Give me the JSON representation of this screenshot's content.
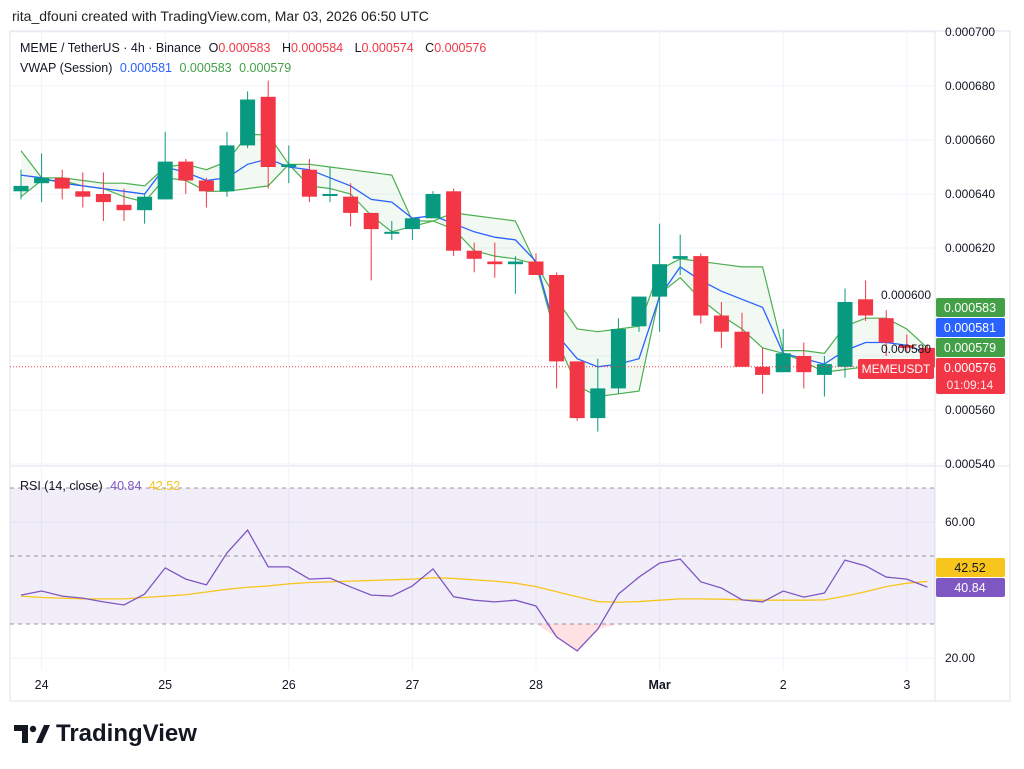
{
  "header": {
    "credit": "rita_dfouni created with TradingView.com, Mar 03, 2026 06:50 UTC"
  },
  "legend": {
    "symbol": "MEME / TetherUS · 4h · Binance",
    "o_label": "O",
    "o": "0.000583",
    "h_label": "H",
    "h": "0.000584",
    "l_label": "L",
    "l": "0.000574",
    "c_label": "C",
    "c": "0.000576",
    "vwap_title": "VWAP (Session)",
    "vwap": "0.000581",
    "vwap_upper": "0.000583",
    "vwap_lower": "0.000579",
    "rsi_title": "RSI (14, close)",
    "rsi": "40.84",
    "rsi_ma": "42.52"
  },
  "price_labels": {
    "upper": "0.000583",
    "vwap": "0.000581",
    "lower": "0.000579",
    "last": "0.000576",
    "countdown": "01:09:14",
    "ticker": "MEMEUSDT"
  },
  "rsi_labels": {
    "ma": "42.52",
    "rsi": "40.84"
  },
  "colors": {
    "up": "#089981",
    "down": "#f23645",
    "vwap": "#2962ff",
    "band": "#4caf50",
    "rsi": "#7e57c2",
    "rsi_ma": "#f7c51b"
  },
  "logo": {
    "text": "TradingView"
  },
  "chart_data": [
    {
      "type": "candlestick",
      "title": "MEME / TetherUS · 4h · Binance",
      "ylim": [
        0.00054,
        0.0007
      ],
      "y_ticks": [
        "0.000700",
        "0.000680",
        "0.000660",
        "0.000640",
        "0.000620",
        "0.000600",
        "0.000580",
        "0.000560",
        "0.000540"
      ],
      "x_ticks": [
        "24",
        "25",
        "26",
        "27",
        "28",
        "Mar",
        "2",
        "3"
      ],
      "x_tick_index": [
        1,
        7,
        13,
        19,
        25,
        31,
        37,
        43
      ],
      "grid": true,
      "ohlc": [
        [
          0.000641,
          0.000649,
          0.000638,
          0.000643
        ],
        [
          0.000644,
          0.000655,
          0.000637,
          0.000646
        ],
        [
          0.000646,
          0.000649,
          0.000638,
          0.000642
        ],
        [
          0.000641,
          0.000648,
          0.000635,
          0.000639
        ],
        [
          0.00064,
          0.000648,
          0.00063,
          0.000637
        ],
        [
          0.000636,
          0.000642,
          0.00063,
          0.000634
        ],
        [
          0.000634,
          0.00064,
          0.000629,
          0.000639
        ],
        [
          0.000638,
          0.000663,
          0.000638,
          0.000652
        ],
        [
          0.000652,
          0.000653,
          0.00064,
          0.000645
        ],
        [
          0.000645,
          0.000646,
          0.000635,
          0.000641
        ],
        [
          0.000641,
          0.000663,
          0.000639,
          0.000658
        ],
        [
          0.000658,
          0.000678,
          0.000657,
          0.000675
        ],
        [
          0.000676,
          0.000682,
          0.000642,
          0.00065
        ],
        [
          0.00065,
          0.000658,
          0.000644,
          0.000651
        ],
        [
          0.000649,
          0.000653,
          0.000637,
          0.000639
        ],
        [
          0.00064,
          0.00065,
          0.000637,
          0.00064
        ],
        [
          0.000639,
          0.000644,
          0.000628,
          0.000633
        ],
        [
          0.000633,
          0.000633,
          0.000608,
          0.000627
        ],
        [
          0.000626,
          0.00063,
          0.000623,
          0.000626
        ],
        [
          0.000627,
          0.000631,
          0.000623,
          0.000631
        ],
        [
          0.000631,
          0.000641,
          0.000631,
          0.00064
        ],
        [
          0.000641,
          0.000642,
          0.000617,
          0.000619
        ],
        [
          0.000619,
          0.000622,
          0.000611,
          0.000616
        ],
        [
          0.000615,
          0.000622,
          0.000609,
          0.000614
        ],
        [
          0.000614,
          0.000617,
          0.000603,
          0.000615
        ],
        [
          0.000615,
          0.000618,
          0.00061,
          0.00061
        ],
        [
          0.00061,
          0.000611,
          0.000568,
          0.000578
        ],
        [
          0.000578,
          0.000578,
          0.000556,
          0.000557
        ],
        [
          0.000557,
          0.000579,
          0.000552,
          0.000568
        ],
        [
          0.000568,
          0.000594,
          0.000566,
          0.00059
        ],
        [
          0.000591,
          0.000602,
          0.000589,
          0.000602
        ],
        [
          0.000602,
          0.000629,
          0.000589,
          0.000614
        ],
        [
          0.000616,
          0.000625,
          0.00061,
          0.000617
        ],
        [
          0.000617,
          0.000618,
          0.000592,
          0.000595
        ],
        [
          0.000595,
          0.0006,
          0.000583,
          0.000589
        ],
        [
          0.000589,
          0.000596,
          0.000576,
          0.000576
        ],
        [
          0.000576,
          0.000583,
          0.000566,
          0.000573
        ],
        [
          0.000574,
          0.00059,
          0.000574,
          0.000581
        ],
        [
          0.00058,
          0.000585,
          0.000568,
          0.000574
        ],
        [
          0.000573,
          0.00058,
          0.000565,
          0.000577
        ],
        [
          0.000576,
          0.000605,
          0.000572,
          0.0006
        ],
        [
          0.000601,
          0.000608,
          0.000593,
          0.000595
        ],
        [
          0.000594,
          0.000597,
          0.00058,
          0.000585
        ],
        [
          0.000584,
          0.000588,
          0.000581,
          0.000583
        ],
        [
          0.000583,
          0.000584,
          0.000574,
          0.000576
        ]
      ],
      "series": [
        {
          "name": "VWAP (Session)",
          "values": [
            0.000647,
            0.000646,
            0.000644,
            0.000643,
            0.000642,
            0.000641,
            0.00064,
            0.00065,
            0.000648,
            0.000645,
            0.000646,
            0.000651,
            0.000653,
            0.00065,
            0.000649,
            0.000646,
            0.000643,
            0.000638,
            0.000637,
            0.000631,
            0.000632,
            0.000629,
            0.000626,
            0.000624,
            0.000623,
            0.000615,
            0.000588,
            0.000579,
            0.000576,
            0.000577,
            0.000579,
            0.000602,
            0.000613,
            0.000608,
            0.000604,
            0.000601,
            0.000598,
            0.000581,
            0.000579,
            0.000577,
            0.000582,
            0.000585,
            0.000585,
            0.000584,
            0.000581
          ]
        },
        {
          "values": [
            0.000656,
            0.000646,
            0.000646,
            0.000645,
            0.000644,
            0.000644,
            0.000643,
            0.00065,
            0.000651,
            0.000649,
            0.000652,
            0.000662,
            0.000662,
            0.000651,
            0.000651,
            0.00065,
            0.000649,
            0.000648,
            0.000647,
            0.00063,
            0.00063,
            0.000633,
            0.000632,
            0.000631,
            0.00063,
            0.000614,
            0.000601,
            0.00059,
            0.000589,
            0.00059,
            0.000591,
            0.000612,
            0.000616,
            0.000615,
            0.000614,
            0.000613,
            0.000613,
            0.000582,
            0.000582,
            0.000581,
            0.000591,
            0.000594,
            0.000594,
            0.00059,
            0.000583
          ]
        },
        {
          "values": [
            0.000639,
            0.000645,
            0.000645,
            0.000643,
            0.000642,
            0.000639,
            0.000637,
            0.000646,
            0.000645,
            0.000641,
            0.000641,
            0.000642,
            0.000643,
            0.000651,
            0.000643,
            0.000642,
            0.00064,
            0.000632,
            0.000626,
            0.000628,
            0.00063,
            0.000627,
            0.000619,
            0.000617,
            0.000616,
            0.000614,
            0.000586,
            0.000569,
            0.000565,
            0.000566,
            0.000567,
            0.000603,
            0.000609,
            0.000601,
            0.000595,
            0.00059,
            0.000583,
            0.000581,
            0.000578,
            0.000574,
            0.000575,
            0.000576,
            0.000576,
            0.000577,
            0.000579
          ]
        }
      ]
    },
    {
      "type": "line",
      "title": "RSI (14, close)",
      "ylim": [
        15,
        80
      ],
      "y_ticks": [
        "60.00",
        "20.00"
      ],
      "bands": [
        70,
        50,
        30
      ],
      "series": [
        {
          "name": "RSI",
          "values": [
            38.5,
            39.7,
            38.2,
            37.6,
            36.5,
            35.6,
            38.8,
            46.5,
            43.2,
            41.5,
            50.9,
            57.6,
            46.8,
            46.8,
            43.2,
            43.5,
            40.9,
            38.5,
            38.2,
            41.2,
            46.2,
            38.0,
            37.0,
            36.5,
            37.0,
            35.3,
            26.2,
            22.1,
            28.5,
            38.8,
            43.8,
            47.9,
            49.1,
            42.4,
            40.6,
            37.1,
            36.5,
            39.7,
            37.9,
            39.1,
            48.8,
            47.1,
            43.8,
            43.2,
            40.84
          ]
        },
        {
          "name": "RSI-based MA",
          "values": [
            38.2,
            37.8,
            37.6,
            37.4,
            37.4,
            37.4,
            37.8,
            38.2,
            38.6,
            39.4,
            40.2,
            40.8,
            41.2,
            41.8,
            42.2,
            42.4,
            42.6,
            42.8,
            43.0,
            43.2,
            43.6,
            43.4,
            43.0,
            42.6,
            42.0,
            41.0,
            39.5,
            38.0,
            36.6,
            36.4,
            36.6,
            37.0,
            37.4,
            37.4,
            37.3,
            37.1,
            37.0,
            37.0,
            37.0,
            37.1,
            38.2,
            39.5,
            41.0,
            42.0,
            42.52
          ]
        }
      ]
    }
  ]
}
